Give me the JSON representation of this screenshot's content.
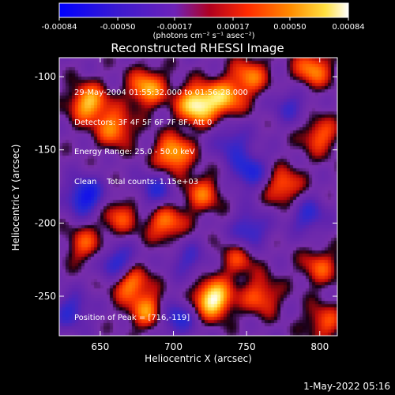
{
  "chart_data": {
    "type": "heatmap",
    "title": "Reconstructed RHESSI Image",
    "xlabel": "Heliocentric X (arcsec)",
    "ylabel": "Heliocentric Y (arcsec)",
    "xlim": [
      622,
      812
    ],
    "ylim": [
      -277,
      -87
    ],
    "x_ticks": [
      650,
      700,
      750,
      800
    ],
    "y_ticks": [
      -100,
      -150,
      -200,
      -250
    ],
    "colorbar": {
      "range": [
        -0.00084,
        0.00084
      ],
      "ticks": [
        -0.00084,
        -0.0005,
        -0.00017,
        0.00017,
        0.0005,
        0.00084
      ],
      "tick_labels": [
        "-0.00084",
        "-0.00050",
        "-0.00017",
        "0.00017",
        "0.00050",
        "0.00084"
      ],
      "unit_label": "(photons cm⁻² s⁻¹ asec⁻²)",
      "colormap": [
        "#0000ff",
        "#5a1aa8",
        "#7b2fb0",
        "#c00000",
        "#ff3000",
        "#ff9000",
        "#ffff80",
        "#ffffff"
      ]
    },
    "annotations": [
      "29-May-2004 01:55:32.000 to 01:56:28.000",
      "Detectors: 3F 4F 5F 6F 7F 8F, Att 0",
      "Energy Range: 25.0 - 50.0 keV",
      "Clean    Total counts: 1.15e+03"
    ],
    "peak_text": "Position of Peak = [716,-119]",
    "peak_position": [
      716,
      -119
    ],
    "bright_sources": [
      {
        "x": 727,
        "y": -252,
        "v": 1.0
      },
      {
        "x": 716,
        "y": -119,
        "v": 0.95
      },
      {
        "x": 700,
        "y": -153,
        "v": 0.75
      },
      {
        "x": 642,
        "y": -118,
        "v": 0.75
      },
      {
        "x": 660,
        "y": -135,
        "v": 0.6
      },
      {
        "x": 682,
        "y": -108,
        "v": 0.7
      },
      {
        "x": 735,
        "y": -115,
        "v": 0.65
      },
      {
        "x": 752,
        "y": -100,
        "v": 0.55
      },
      {
        "x": 795,
        "y": -95,
        "v": 0.6
      },
      {
        "x": 800,
        "y": -140,
        "v": 0.5
      },
      {
        "x": 775,
        "y": -175,
        "v": 0.55
      },
      {
        "x": 720,
        "y": -180,
        "v": 0.5
      },
      {
        "x": 695,
        "y": -200,
        "v": 0.6
      },
      {
        "x": 663,
        "y": -195,
        "v": 0.45
      },
      {
        "x": 640,
        "y": -215,
        "v": 0.45
      },
      {
        "x": 670,
        "y": -240,
        "v": 0.7
      },
      {
        "x": 683,
        "y": -260,
        "v": 0.6
      },
      {
        "x": 760,
        "y": -250,
        "v": 0.5
      },
      {
        "x": 800,
        "y": -230,
        "v": 0.45
      },
      {
        "x": 803,
        "y": -268,
        "v": 0.45
      },
      {
        "x": 744,
        "y": -225,
        "v": 0.4
      }
    ],
    "dark_sources": [
      {
        "x": 640,
        "y": -182,
        "v": -0.8
      },
      {
        "x": 662,
        "y": -228,
        "v": -0.7
      },
      {
        "x": 702,
        "y": -265,
        "v": -0.6
      },
      {
        "x": 752,
        "y": -165,
        "v": -0.6
      },
      {
        "x": 792,
        "y": -195,
        "v": -0.5
      },
      {
        "x": 752,
        "y": -205,
        "v": -0.55
      },
      {
        "x": 688,
        "y": -178,
        "v": -0.5
      },
      {
        "x": 630,
        "y": -260,
        "v": -0.5
      },
      {
        "x": 780,
        "y": -120,
        "v": -0.4
      },
      {
        "x": 740,
        "y": -145,
        "v": -0.45
      },
      {
        "x": 710,
        "y": -225,
        "v": -0.4
      }
    ]
  },
  "footer": {
    "timestamp": "1-May-2022 05:16"
  }
}
